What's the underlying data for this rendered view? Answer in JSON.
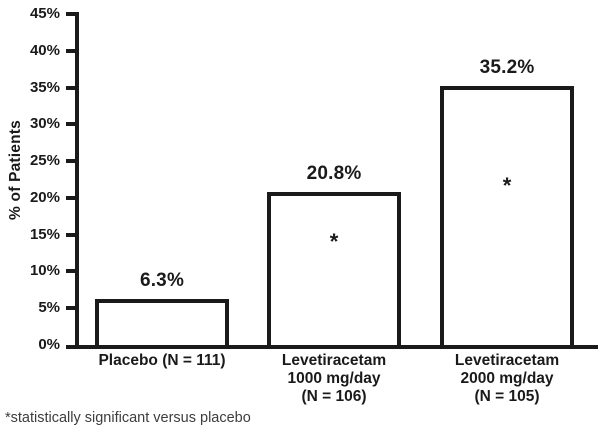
{
  "chart_data": {
    "type": "bar",
    "title": "",
    "xlabel": "",
    "ylabel": "% of Patients",
    "ylim": [
      0,
      45
    ],
    "ytick_step": 5,
    "ytick_labels": [
      "0%",
      "5%",
      "10%",
      "15%",
      "20%",
      "25%",
      "30%",
      "35%",
      "40%",
      "45%"
    ],
    "categories": [
      "Placebo (N = 111)",
      "Levetiracetam\n1000 mg/day\n(N = 106)",
      "Levetiracetam\n2000 mg/day\n(N = 105)"
    ],
    "values": [
      6.3,
      20.8,
      35.2
    ],
    "value_labels": [
      "6.3%",
      "20.8%",
      "35.2%"
    ],
    "significant": [
      false,
      true,
      true
    ],
    "significance_marker": "*",
    "grid": false,
    "legend": false
  },
  "footnote": "*statistically significant versus placebo",
  "colors": {
    "ink": "#1a1a1a",
    "bar_fill": "#ffffff",
    "footnote_ink": "#3d3d3d",
    "background": "#ffffff"
  }
}
